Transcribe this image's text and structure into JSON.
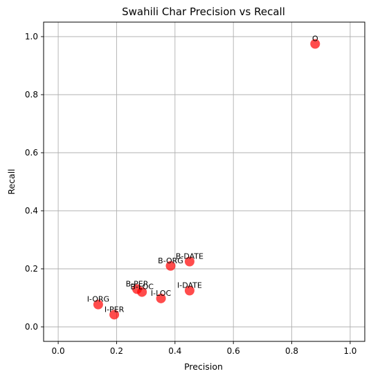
{
  "chart_data": {
    "type": "scatter",
    "title": "Swahili Char Precision vs Recall",
    "xlabel": "Precision",
    "ylabel": "Recall",
    "xlim": [
      -0.05,
      1.05
    ],
    "ylim": [
      -0.05,
      1.05
    ],
    "xticks": [
      0.0,
      0.2,
      0.4,
      0.6,
      0.8,
      1.0
    ],
    "yticks": [
      0.0,
      0.2,
      0.4,
      0.6,
      0.8,
      1.0
    ],
    "xtick_labels": [
      "0.0",
      "0.2",
      "0.4",
      "0.6",
      "0.8",
      "1.0"
    ],
    "ytick_labels": [
      "0.0",
      "0.2",
      "0.4",
      "0.6",
      "0.8",
      "1.0"
    ],
    "grid": true,
    "marker_color": "#ff0000",
    "points": [
      {
        "label": "O",
        "x": 0.88,
        "y": 0.975
      },
      {
        "label": "B-DATE",
        "x": 0.45,
        "y": 0.225
      },
      {
        "label": "B-ORG",
        "x": 0.385,
        "y": 0.21
      },
      {
        "label": "B-PER",
        "x": 0.27,
        "y": 0.13
      },
      {
        "label": "B-LOC",
        "x": 0.287,
        "y": 0.12
      },
      {
        "label": "I-DATE",
        "x": 0.45,
        "y": 0.125
      },
      {
        "label": "I-LOC",
        "x": 0.352,
        "y": 0.098
      },
      {
        "label": "I-ORG",
        "x": 0.137,
        "y": 0.077
      },
      {
        "label": "I-PER",
        "x": 0.192,
        "y": 0.042
      }
    ]
  }
}
